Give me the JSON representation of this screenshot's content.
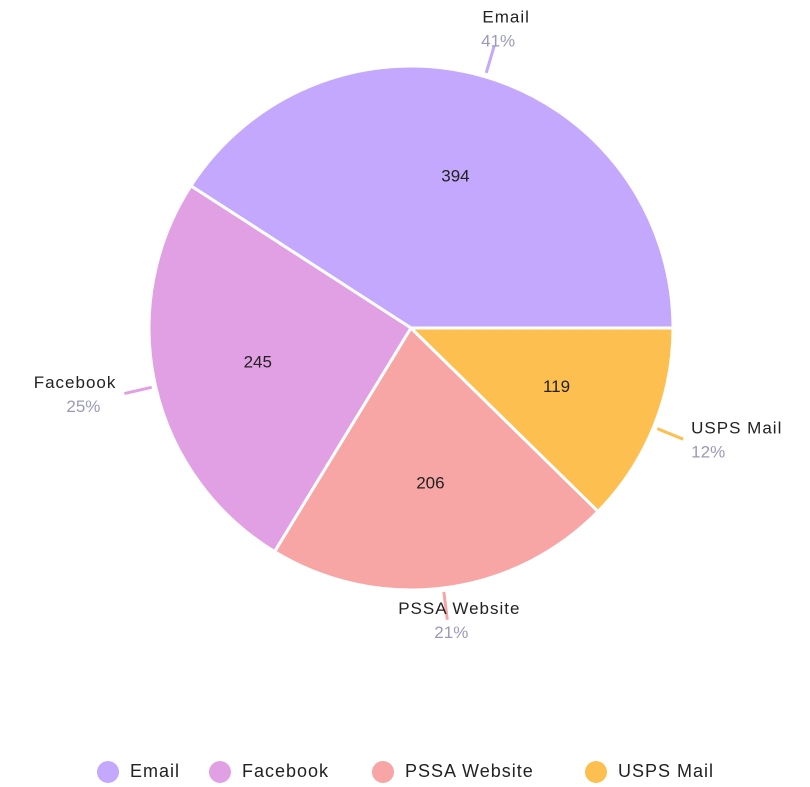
{
  "chart_data": {
    "type": "pie",
    "categories": [
      "Email",
      "Facebook",
      "PSSA Website",
      "USPS Mail"
    ],
    "values": [
      394,
      245,
      206,
      119
    ],
    "percent_labels": [
      "41%",
      "25%",
      "21%",
      "12%"
    ],
    "colors": [
      "#c4a8fd",
      "#e2a0e4",
      "#f8a5a5",
      "#fdbf50"
    ],
    "legend": "bottom"
  }
}
